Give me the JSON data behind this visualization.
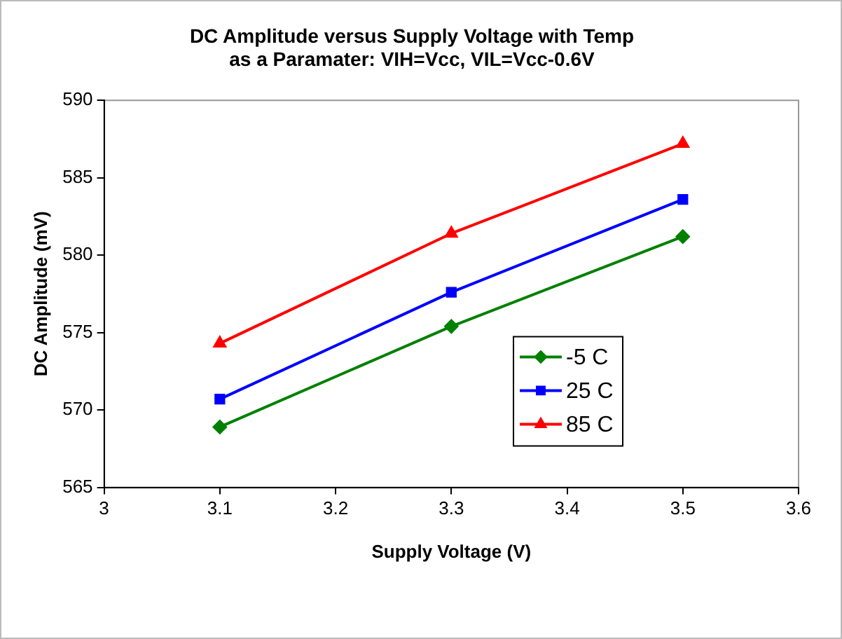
{
  "chart_data": {
    "type": "line",
    "title": "DC Amplitude versus Supply Voltage with Temp\nas a Paramater: VIH=Vcc, VIL=Vcc-0.6V",
    "xlabel": "Supply Voltage (V)",
    "ylabel": "DC Amplitude (mV)",
    "x": [
      3.1,
      3.3,
      3.5
    ],
    "series": [
      {
        "name": "-5 C",
        "color": "#008000",
        "marker": "diamond",
        "values": [
          568.9,
          575.4,
          581.2
        ]
      },
      {
        "name": "25 C",
        "color": "#0000ff",
        "marker": "square",
        "values": [
          570.7,
          577.6,
          583.6
        ]
      },
      {
        "name": "85 C",
        "color": "#ff0000",
        "marker": "triangle",
        "values": [
          574.3,
          581.4,
          587.2
        ]
      }
    ],
    "xlim": [
      3,
      3.6
    ],
    "xticks": [
      3,
      3.1,
      3.2,
      3.3,
      3.4,
      3.5,
      3.6
    ],
    "ylim": [
      565,
      590
    ],
    "yticks": [
      565,
      570,
      575,
      580,
      585,
      590
    ],
    "grid": false,
    "legend": "right",
    "line_style": "solid"
  }
}
